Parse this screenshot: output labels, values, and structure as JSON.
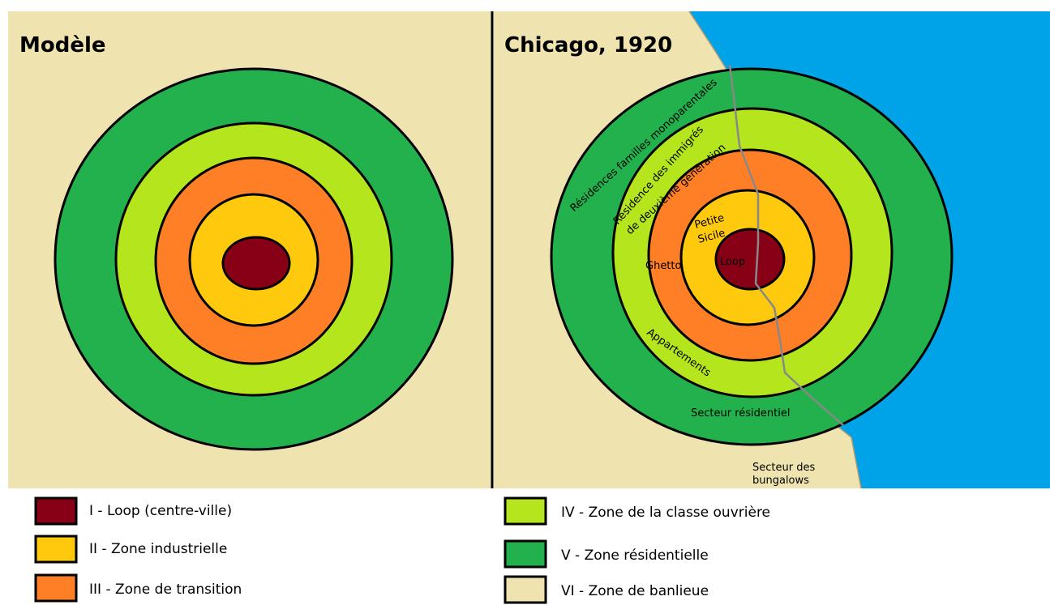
{
  "panels": [
    {
      "title": "Modèle"
    },
    {
      "title": "Chicago, 1920",
      "labels": [
        "Résidences familles monoparentales",
        "Résidence des immigrés",
        "de deuxième génération",
        "Petite",
        "Sicile",
        "Ghetto",
        "Loop",
        "Appartements",
        "Secteur résidentiel",
        "Secteur des",
        "bungalows"
      ]
    }
  ],
  "legend": [
    {
      "label": "I - Loop (centre-ville)"
    },
    {
      "label": "II - Zone industrielle"
    },
    {
      "label": "III - Zone de transition"
    },
    {
      "label": "IV - Zone de la classe ouvrière"
    },
    {
      "label": "V - Zone résidentielle"
    },
    {
      "label": "VI - Zone de banlieue"
    }
  ]
}
